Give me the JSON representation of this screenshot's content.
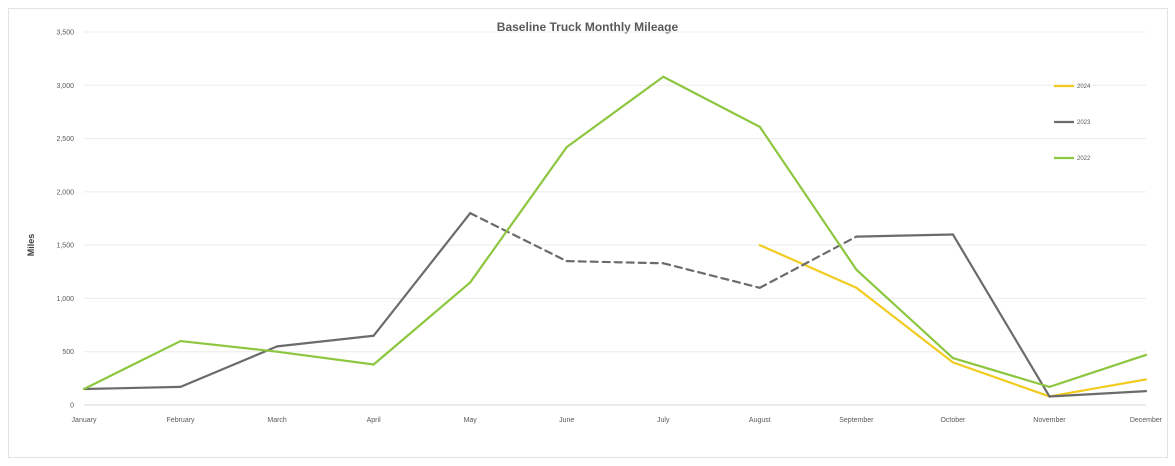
{
  "chart_data": {
    "type": "line",
    "title": "Baseline Truck Monthly Mileage",
    "xlabel": "",
    "ylabel": "Miles",
    "ylim": [
      0,
      3500
    ],
    "yticks": [
      "0",
      "500",
      "1,000",
      "1,500",
      "2,000",
      "2,500",
      "3,000",
      "3,500"
    ],
    "categories": [
      "January",
      "February",
      "March",
      "April",
      "May",
      "June",
      "July",
      "August",
      "September",
      "October",
      "November",
      "December"
    ],
    "grid": true,
    "legend_position": "right",
    "series": [
      {
        "name": "2024",
        "color": "#f2cb1f",
        "values": [
          null,
          null,
          null,
          null,
          null,
          null,
          null,
          1500,
          1100,
          400,
          80,
          240
        ]
      },
      {
        "name": "2023",
        "color": "#6b6b6b",
        "values": [
          150,
          170,
          550,
          650,
          1800,
          1350,
          1330,
          1100,
          1580,
          1600,
          80,
          130
        ],
        "dashed_segments": [
          [
            4,
            8
          ]
        ]
      },
      {
        "name": "2022",
        "color": "#8dc63f",
        "values": [
          150,
          600,
          500,
          380,
          1150,
          2420,
          3080,
          2610,
          1270,
          440,
          170,
          470
        ]
      }
    ]
  }
}
